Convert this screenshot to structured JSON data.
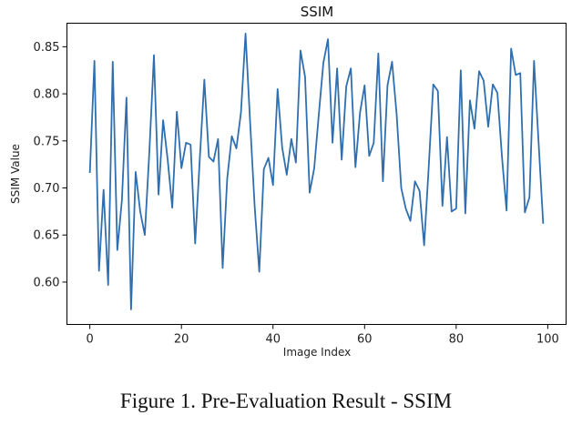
{
  "chart_data": {
    "type": "line",
    "title": "SSIM",
    "xlabel": "Image Index",
    "ylabel": "SSIM Value",
    "xlim": [
      -5,
      104
    ],
    "ylim": [
      0.555,
      0.875
    ],
    "xticks": [
      0,
      20,
      40,
      60,
      80,
      100
    ],
    "yticks": [
      0.6,
      0.65,
      0.7,
      0.75,
      0.8,
      0.85
    ],
    "xtick_labels": [
      "0",
      "20",
      "40",
      "60",
      "80",
      "100"
    ],
    "ytick_labels": [
      "0.60",
      "0.65",
      "0.70",
      "0.75",
      "0.80",
      "0.85"
    ],
    "grid": false,
    "series": [
      {
        "name": "SSIM",
        "color": "#2f6fb0",
        "x": [
          0,
          1,
          2,
          3,
          4,
          5,
          6,
          7,
          8,
          9,
          10,
          11,
          12,
          13,
          14,
          15,
          16,
          17,
          18,
          19,
          20,
          21,
          22,
          23,
          24,
          25,
          26,
          27,
          28,
          29,
          30,
          31,
          32,
          33,
          34,
          35,
          36,
          37,
          38,
          39,
          40,
          41,
          42,
          43,
          44,
          45,
          46,
          47,
          48,
          49,
          50,
          51,
          52,
          53,
          54,
          55,
          56,
          57,
          58,
          59,
          60,
          61,
          62,
          63,
          64,
          65,
          66,
          67,
          68,
          69,
          70,
          71,
          72,
          73,
          74,
          75,
          76,
          77,
          78,
          79,
          80,
          81,
          82,
          83,
          84,
          85,
          86,
          87,
          88,
          89,
          90,
          91,
          92,
          93,
          94,
          95,
          96,
          97,
          98,
          99
        ],
        "values": [
          0.716,
          0.835,
          0.612,
          0.698,
          0.597,
          0.834,
          0.634,
          0.687,
          0.796,
          0.571,
          0.717,
          0.675,
          0.65,
          0.739,
          0.841,
          0.693,
          0.772,
          0.73,
          0.679,
          0.781,
          0.721,
          0.748,
          0.746,
          0.641,
          0.73,
          0.815,
          0.733,
          0.728,
          0.752,
          0.615,
          0.71,
          0.755,
          0.742,
          0.78,
          0.864,
          0.77,
          0.68,
          0.611,
          0.72,
          0.732,
          0.703,
          0.805,
          0.743,
          0.714,
          0.752,
          0.727,
          0.846,
          0.818,
          0.695,
          0.721,
          0.778,
          0.833,
          0.858,
          0.748,
          0.827,
          0.73,
          0.808,
          0.827,
          0.722,
          0.78,
          0.809,
          0.734,
          0.748,
          0.843,
          0.707,
          0.809,
          0.834,
          0.778,
          0.7,
          0.678,
          0.665,
          0.707,
          0.697,
          0.639,
          0.722,
          0.81,
          0.803,
          0.681,
          0.754,
          0.675,
          0.678,
          0.825,
          0.673,
          0.793,
          0.763,
          0.824,
          0.814,
          0.765,
          0.81,
          0.801,
          0.733,
          0.676,
          0.848,
          0.82,
          0.822,
          0.674,
          0.69,
          0.835,
          0.748,
          0.662
        ]
      }
    ]
  },
  "caption": "Figure 1. Pre-Evaluation Result - SSIM"
}
